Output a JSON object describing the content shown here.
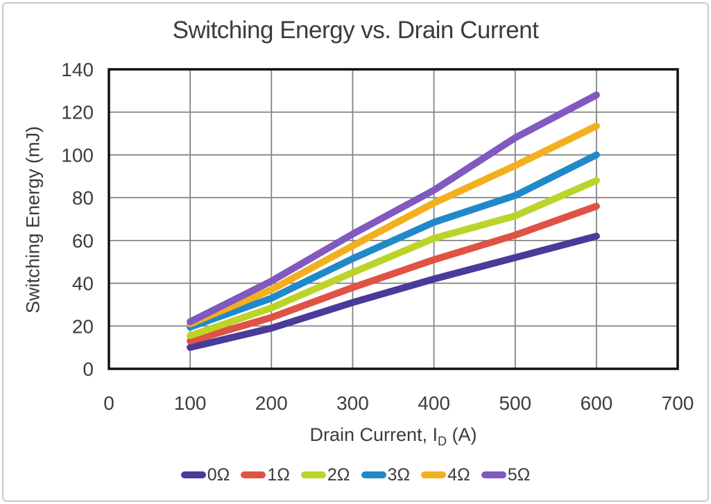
{
  "figure": {
    "background": "#ffffff",
    "border_color": "#c9c9c9"
  },
  "chart_data": {
    "type": "line",
    "title": "Switching Energy vs. Drain Current",
    "ylabel": "Switching Energy (mJ)",
    "xlabel_prefix": "Drain Current, I",
    "xlabel_sub": "D",
    "xlabel_suffix": " (A)",
    "xlim": [
      0,
      700
    ],
    "ylim": [
      0,
      140
    ],
    "x_ticks": [
      0,
      100,
      200,
      300,
      400,
      500,
      600,
      700
    ],
    "y_ticks": [
      0,
      20,
      40,
      60,
      80,
      100,
      120,
      140
    ],
    "grid": true,
    "legend_position": "bottom",
    "x": [
      100,
      200,
      300,
      400,
      500,
      600
    ],
    "series": [
      {
        "name": "0Ω",
        "color": "#4A3A99",
        "values": [
          10,
          19,
          31,
          42,
          52,
          62
        ]
      },
      {
        "name": "1Ω",
        "color": "#E05244",
        "values": [
          13,
          24,
          38,
          51,
          62.5,
          76
        ]
      },
      {
        "name": "2Ω",
        "color": "#BCD42A",
        "values": [
          15.5,
          28.5,
          45,
          61,
          71.5,
          88
        ]
      },
      {
        "name": "3Ω",
        "color": "#2189C9",
        "values": [
          19.5,
          33,
          51.5,
          68.5,
          81,
          100
        ]
      },
      {
        "name": "4Ω",
        "color": "#F2B01E",
        "values": [
          21,
          37,
          57.5,
          77.5,
          95,
          113.5
        ]
      },
      {
        "name": "5Ω",
        "color": "#8159BF",
        "values": [
          22,
          41,
          63,
          83.5,
          108,
          128
        ]
      }
    ],
    "styles": {
      "grid_color": "#848484",
      "frame_color": "#111111",
      "text_color": "#3d3d3d",
      "line_width": 10
    }
  }
}
